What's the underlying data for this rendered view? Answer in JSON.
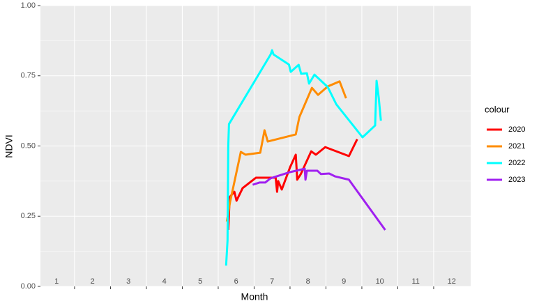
{
  "chart_data": {
    "type": "line",
    "x_label": "Month",
    "y_label": "NDVI",
    "legend_title": "colour",
    "xlim": [
      0.55,
      12.53
    ],
    "xticks": [
      1,
      2,
      3,
      4,
      5,
      6,
      7,
      8,
      9,
      10,
      11,
      12
    ],
    "ylim": [
      0,
      1
    ],
    "yticks": [
      {
        "value": 0,
        "label": "0.00"
      },
      {
        "value": 0.25,
        "label": "0.25"
      },
      {
        "value": 0.5,
        "label": "0.50"
      },
      {
        "value": 0.75,
        "label": "0.75"
      },
      {
        "value": 1,
        "label": "1.00"
      }
    ],
    "grid": true,
    "series": [
      {
        "name": "2020",
        "color": "#ff0000",
        "x": [
          5.78,
          5.82,
          5.95,
          6.01,
          6.18,
          6.55,
          7.1,
          7.14,
          7.17,
          7.27,
          7.5,
          7.66,
          7.7,
          7.8,
          8.09,
          8.22,
          8.48,
          9.14,
          9.37
        ],
        "values": [
          0.201,
          0.318,
          0.337,
          0.305,
          0.35,
          0.387,
          0.387,
          0.337,
          0.375,
          0.345,
          0.424,
          0.469,
          0.38,
          0.4,
          0.481,
          0.469,
          0.496,
          0.464,
          0.524
        ]
      },
      {
        "name": "2021",
        "color": "#ff8c00",
        "x": [
          5.74,
          5.83,
          6.13,
          6.26,
          6.67,
          6.79,
          6.88,
          7.66,
          7.76,
          8.11,
          8.28,
          8.55,
          8.88,
          9.06
        ],
        "values": [
          0.231,
          0.3,
          0.479,
          0.469,
          0.476,
          0.556,
          0.516,
          0.541,
          0.603,
          0.707,
          0.682,
          0.712,
          0.73,
          0.67
        ]
      },
      {
        "name": "2022",
        "color": "#00ffff",
        "x": [
          5.72,
          5.76,
          5.78,
          5.8,
          6.96,
          7.0,
          7.04,
          7.47,
          7.52,
          7.74,
          7.81,
          7.97,
          8.03,
          8.18,
          8.55,
          8.79,
          9.52,
          9.87,
          9.91,
          9.97,
          10.03
        ],
        "values": [
          0.074,
          0.164,
          0.5,
          0.578,
          0.826,
          0.841,
          0.826,
          0.79,
          0.764,
          0.789,
          0.757,
          0.759,
          0.722,
          0.754,
          0.71,
          0.648,
          0.531,
          0.573,
          0.732,
          0.672,
          0.59
        ]
      },
      {
        "name": "2023",
        "color": "#a020f0",
        "x": [
          6.46,
          6.65,
          6.81,
          6.96,
          7.5,
          7.91,
          7.93,
          7.97,
          8.26,
          8.36,
          8.59,
          8.75,
          9.14,
          10.15
        ],
        "values": [
          0.362,
          0.37,
          0.37,
          0.385,
          0.407,
          0.419,
          0.38,
          0.412,
          0.412,
          0.4,
          0.402,
          0.392,
          0.38,
          0.201
        ]
      }
    ]
  }
}
